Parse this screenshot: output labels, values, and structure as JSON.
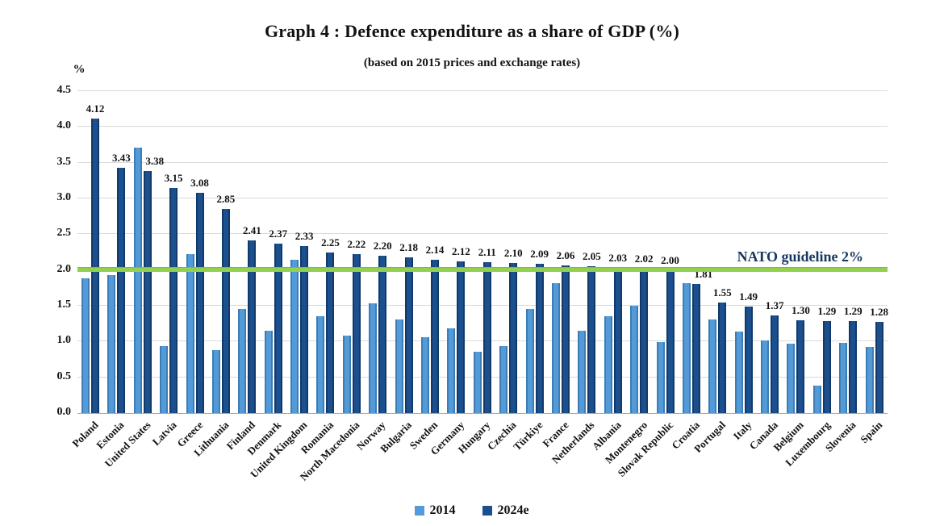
{
  "page": {
    "title": "Graph 4 : Defence expenditure as a share of GDP (%)",
    "subtitle": "(based on 2015 prices and exchange rates)",
    "y_axis_unit": "%"
  },
  "legend": {
    "items": [
      {
        "label": "2014",
        "color": "#539ad8"
      },
      {
        "label": "2024e",
        "color": "#1b4f8e"
      }
    ]
  },
  "chart_data": {
    "type": "bar",
    "title": "Graph 4 : Defence expenditure as a share of GDP (%)",
    "subtitle": "(based on 2015 prices and exchange rates)",
    "xlabel": "",
    "ylabel": "%",
    "ylim": [
      0,
      4.5
    ],
    "ytick_step": 0.5,
    "grid": true,
    "legend_position": "bottom",
    "guideline": {
      "value": 2.0,
      "label": "NATO guideline 2%",
      "color": "#92d050"
    },
    "categories": [
      "Poland",
      "Estonia",
      "United States",
      "Latvia",
      "Greece",
      "Lithuania",
      "Finland",
      "Denmark",
      "United Kingdom",
      "Romania",
      "North Macedonia",
      "Norway",
      "Bulgaria",
      "Sweden",
      "Germany",
      "Hungary",
      "Czechia",
      "Türkiye",
      "France",
      "Netherlands",
      "Albania",
      "Montenegro",
      "Slovak Republic",
      "Croatia",
      "Portugal",
      "Italy",
      "Canada",
      "Belgium",
      "Luxembourg",
      "Slovenia",
      "Spain"
    ],
    "series": [
      {
        "name": "2014",
        "color": "#539ad8",
        "values": [
          1.88,
          1.93,
          3.71,
          0.94,
          2.22,
          0.88,
          1.45,
          1.15,
          2.14,
          1.35,
          1.08,
          1.53,
          1.31,
          1.06,
          1.18,
          0.86,
          0.94,
          1.45,
          1.82,
          1.15,
          1.35,
          1.5,
          0.99,
          1.82,
          1.31,
          1.14,
          1.01,
          0.97,
          0.38,
          0.98,
          0.92
        ],
        "data_labels": false
      },
      {
        "name": "2024e",
        "color": "#1b4f8e",
        "values": [
          4.12,
          3.43,
          3.38,
          3.15,
          3.08,
          2.85,
          2.41,
          2.37,
          2.33,
          2.25,
          2.22,
          2.2,
          2.18,
          2.14,
          2.12,
          2.11,
          2.1,
          2.09,
          2.06,
          2.05,
          2.03,
          2.02,
          2.0,
          1.81,
          1.55,
          1.49,
          1.37,
          1.3,
          1.29,
          1.29,
          1.28
        ],
        "data_labels": true
      }
    ]
  }
}
